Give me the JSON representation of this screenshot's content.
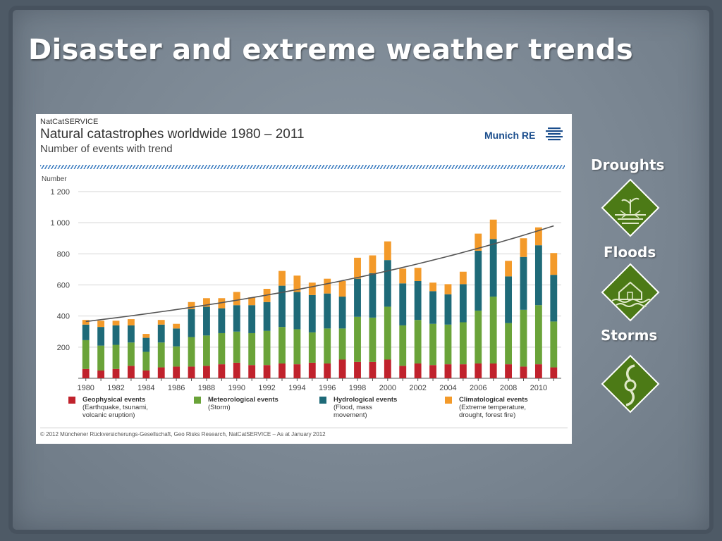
{
  "slide": {
    "title": "Disaster and extreme weather trends"
  },
  "chart_header": {
    "source": "NatCatSERVICE",
    "title": "Natural catastrophes worldwide 1980 – 2011",
    "subtitle": "Number of events with trend",
    "brand": "Munich RE",
    "footer": "© 2012 Münchener Rückversicherungs-Gesellschaft, Geo Risks Research, NatCatSERVICE – As at January 2012"
  },
  "sidebar": {
    "items": [
      {
        "label": "Droughts",
        "icon": "drought-icon"
      },
      {
        "label": "Floods",
        "icon": "flood-icon"
      },
      {
        "label": "Storms",
        "icon": "storm-icon"
      }
    ]
  },
  "colors": {
    "geophysical": "#c0222c",
    "meteorological": "#6aa339",
    "hydrological": "#1e6a78",
    "climatological": "#f39a2a",
    "trend": "#555555",
    "icon_fill": "#4c7a16"
  },
  "chart_data": {
    "type": "bar",
    "stacked": true,
    "ylabel": "Number",
    "ylim": [
      0,
      1200
    ],
    "yticks": [
      200,
      400,
      600,
      800,
      1000,
      1200
    ],
    "ytick_labels": [
      "200",
      "400",
      "600",
      "800",
      "1 000",
      "1 200"
    ],
    "xtick_labels": [
      "1980",
      "1982",
      "1984",
      "1986",
      "1988",
      "1990",
      "1992",
      "1994",
      "1996",
      "1998",
      "2000",
      "2002",
      "2004",
      "2006",
      "2008",
      "2010"
    ],
    "categories": [
      1980,
      1981,
      1982,
      1983,
      1984,
      1985,
      1986,
      1987,
      1988,
      1989,
      1990,
      1991,
      1992,
      1993,
      1994,
      1995,
      1996,
      1997,
      1998,
      1999,
      2000,
      2001,
      2002,
      2003,
      2004,
      2005,
      2006,
      2007,
      2008,
      2009,
      2010,
      2011
    ],
    "grid": true,
    "series": [
      {
        "name": "Geophysical events",
        "description": "(Earthquake, tsunami,\nvolcanic eruption)",
        "color_key": "geophysical",
        "values": [
          60,
          50,
          60,
          80,
          50,
          70,
          75,
          75,
          80,
          90,
          100,
          85,
          85,
          95,
          90,
          100,
          95,
          120,
          105,
          105,
          120,
          80,
          95,
          85,
          90,
          90,
          95,
          95,
          90,
          75,
          90,
          70
        ]
      },
      {
        "name": "Meteorological events",
        "description": "(Storm)",
        "color_key": "meteorological",
        "values": [
          185,
          160,
          155,
          150,
          120,
          160,
          130,
          190,
          195,
          200,
          200,
          205,
          220,
          235,
          225,
          195,
          225,
          200,
          290,
          285,
          340,
          260,
          280,
          265,
          255,
          270,
          340,
          430,
          265,
          365,
          380,
          295
        ]
      },
      {
        "name": "Hydrological events",
        "description": "(Flood, mass\nmovement)",
        "color_key": "hydrological",
        "values": [
          100,
          120,
          125,
          110,
          90,
          115,
          115,
          180,
          185,
          160,
          170,
          180,
          185,
          265,
          240,
          240,
          225,
          205,
          245,
          285,
          300,
          270,
          250,
          210,
          195,
          245,
          385,
          370,
          300,
          340,
          385,
          300
        ]
      },
      {
        "name": "Climatological events",
        "description": "(Extreme temperature,\ndrought, forest fire)",
        "color_key": "climatological",
        "values": [
          30,
          40,
          30,
          40,
          25,
          30,
          30,
          45,
          55,
          65,
          85,
          50,
          85,
          95,
          105,
          80,
          95,
          100,
          135,
          115,
          120,
          95,
          85,
          55,
          65,
          80,
          110,
          125,
          100,
          120,
          115,
          140
        ]
      }
    ],
    "trend": {
      "start": 365,
      "end": 980
    }
  }
}
